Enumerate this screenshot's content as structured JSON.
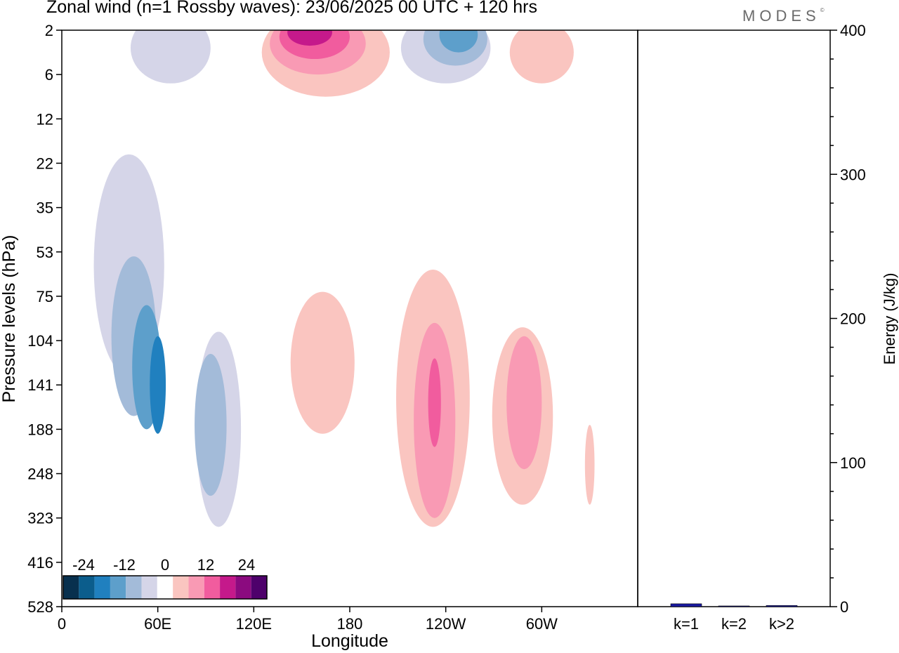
{
  "header": {
    "title": "Zonal wind (n=1 Rossby waves):  23/06/2025  00 UTC  + 120 hrs",
    "logo_text": "MODES",
    "logo_mark": "©"
  },
  "chart_data": [
    {
      "type": "heatmap",
      "title": "Zonal wind (n=1 Rossby waves):  23/06/2025  00 UTC  + 120 hrs",
      "xlabel": "Longitude",
      "ylabel": "Pressure levels (hPa)",
      "x_ticks": [
        "0",
        "60E",
        "120E",
        "180",
        "120W",
        "60W"
      ],
      "x_tick_values": [
        0,
        60,
        120,
        180,
        240,
        300
      ],
      "xlim": [
        0,
        360
      ],
      "y_ticks": [
        "2",
        "6",
        "12",
        "22",
        "35",
        "53",
        "75",
        "104",
        "141",
        "188",
        "248",
        "323",
        "416",
        "528"
      ],
      "y_scale": "category",
      "colorbar": {
        "tick_labels": [
          "-24",
          "-12",
          "0",
          "12",
          "24"
        ],
        "levels": [
          -30,
          -25,
          -20,
          -15,
          -10,
          -5,
          0,
          5,
          10,
          15,
          20,
          25,
          30
        ],
        "colors": [
          "#08304e",
          "#0b5d8c",
          "#2080bf",
          "#5d9fcb",
          "#a3bbd9",
          "#d5d5e8",
          "#ffffff",
          "#fac5c0",
          "#f99ab4",
          "#f15c9e",
          "#c5198b",
          "#8b0a7f",
          "#4e016b"
        ]
      },
      "contour_regions": [
        {
          "class": "-1",
          "x": 42,
          "y": 5.3,
          "rx": 22,
          "ry": 2.5
        },
        {
          "class": "-2",
          "x": 45,
          "y": 6.9,
          "rx": 14,
          "ry": 1.8
        },
        {
          "class": "-3",
          "x": 53,
          "y": 7.6,
          "rx": 9,
          "ry": 1.4
        },
        {
          "class": "-4",
          "x": 60,
          "y": 8.0,
          "rx": 5,
          "ry": 1.1
        },
        {
          "class": "-1",
          "x": 98,
          "y": 9.0,
          "rx": 14,
          "ry": 2.2
        },
        {
          "class": "-2",
          "x": 93,
          "y": 8.9,
          "rx": 10,
          "ry": 1.6
        },
        {
          "class": "1",
          "x": 163,
          "y": 7.5,
          "rx": 20,
          "ry": 1.6
        },
        {
          "class": "1",
          "x": 232,
          "y": 8.3,
          "rx": 23,
          "ry": 2.9
        },
        {
          "class": "2",
          "x": 233,
          "y": 8.8,
          "rx": 13,
          "ry": 2.2
        },
        {
          "class": "3",
          "x": 233,
          "y": 8.4,
          "rx": 4,
          "ry": 1.0
        },
        {
          "class": "1",
          "x": 288,
          "y": 8.7,
          "rx": 19,
          "ry": 2.0
        },
        {
          "class": "2",
          "x": 289,
          "y": 8.4,
          "rx": 11,
          "ry": 1.5
        },
        {
          "class": "1",
          "x": 330,
          "y": 9.8,
          "rx": 3,
          "ry": 0.9
        },
        {
          "class": "-1",
          "x": 68,
          "y": 0.4,
          "rx": 25,
          "ry": 0.8
        },
        {
          "class": "-1",
          "x": 240,
          "y": 0.4,
          "rx": 28,
          "ry": 0.8
        },
        {
          "class": "-2",
          "x": 246,
          "y": 0.2,
          "rx": 20,
          "ry": 0.6
        },
        {
          "class": "-3",
          "x": 248,
          "y": 0.1,
          "rx": 12,
          "ry": 0.4
        },
        {
          "class": "1",
          "x": 165,
          "y": 0.5,
          "rx": 40,
          "ry": 1.0
        },
        {
          "class": "2",
          "x": 160,
          "y": 0.3,
          "rx": 30,
          "ry": 0.7
        },
        {
          "class": "3",
          "x": 158,
          "y": 0.15,
          "rx": 22,
          "ry": 0.5
        },
        {
          "class": "4",
          "x": 155,
          "y": 0.05,
          "rx": 14,
          "ry": 0.3
        },
        {
          "class": "1",
          "x": 300,
          "y": 0.5,
          "rx": 20,
          "ry": 0.7
        }
      ]
    },
    {
      "type": "bar",
      "ylabel": "Energy (J/kg)",
      "categories": [
        "k=1",
        "k=2",
        "k>2"
      ],
      "values": [
        2,
        0.5,
        0.8
      ],
      "ylim": [
        0,
        400
      ],
      "y_ticks": [
        "0",
        "100",
        "200",
        "300",
        "400"
      ],
      "y_tick_values": [
        0,
        100,
        200,
        300,
        400
      ],
      "bar_color": "#1a1aa0"
    }
  ]
}
